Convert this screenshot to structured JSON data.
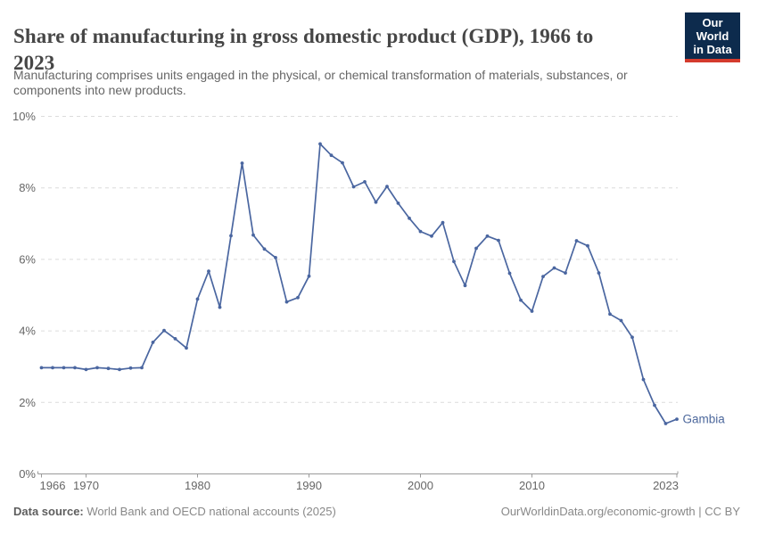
{
  "header": {
    "title_line1": "Share of manufacturing in gross domestic product (GDP), 1966 to",
    "title_line2": "2023",
    "subtitle_line1": "Manufacturing comprises units engaged in the physical, or chemical transformation of materials, substances, or",
    "subtitle_line2": "components into new products."
  },
  "logo": {
    "line1": "Our World",
    "line2": "in Data",
    "bg_color": "#0d2b4d",
    "stripe_color": "#d43b2d"
  },
  "footer": {
    "source_label": "Data source:",
    "source_text": " World Bank and OECD national accounts (2025)",
    "credit": "OurWorldinData.org/economic-growth | CC BY"
  },
  "chart_data": {
    "type": "line",
    "title": "Share of manufacturing in gross domestic product (GDP), 1966 to 2023",
    "unit": "%",
    "entity": "Gambia",
    "x": [
      1966,
      1967,
      1968,
      1969,
      1970,
      1971,
      1972,
      1973,
      1974,
      1975,
      1976,
      1977,
      1978,
      1979,
      1980,
      1981,
      1982,
      1983,
      1984,
      1985,
      1986,
      1987,
      1988,
      1989,
      1990,
      1991,
      1992,
      1993,
      1994,
      1995,
      1996,
      1997,
      1998,
      1999,
      2000,
      2001,
      2002,
      2003,
      2004,
      2005,
      2006,
      2007,
      2008,
      2009,
      2010,
      2011,
      2012,
      2013,
      2014,
      2015,
      2016,
      2017,
      2018,
      2019,
      2020,
      2021,
      2022,
      2023
    ],
    "series": [
      {
        "name": "Gambia",
        "values": [
          2.97,
          2.97,
          2.97,
          2.97,
          2.92,
          2.97,
          2.95,
          2.92,
          2.96,
          2.97,
          3.68,
          4.01,
          3.78,
          3.52,
          4.89,
          5.67,
          4.66,
          6.66,
          8.69,
          6.68,
          6.29,
          6.05,
          4.81,
          4.93,
          5.53,
          9.23,
          8.91,
          8.7,
          8.03,
          8.17,
          7.6,
          8.04,
          7.57,
          7.15,
          6.78,
          6.65,
          7.03,
          5.94,
          5.27,
          6.31,
          6.65,
          6.53,
          5.61,
          4.86,
          4.55,
          5.52,
          5.76,
          5.62,
          6.52,
          6.38,
          5.62,
          4.47,
          4.29,
          3.82,
          2.64,
          1.92,
          1.41,
          1.53
        ]
      }
    ],
    "xlabel": "",
    "ylabel": "",
    "ylim": [
      0,
      10
    ],
    "yticks": [
      0,
      2,
      4,
      6,
      8,
      10
    ],
    "ytick_suffix": "%",
    "xticks": [
      1966,
      1970,
      1980,
      1990,
      2000,
      2010,
      2023
    ],
    "grid": "horizontal-dashed",
    "legend_position": "end-of-line-label",
    "line_color": "#4a66a0",
    "entity_label_color": "#4d689c",
    "tick_label_color": "#666666",
    "axis_color": "#9a9a9a",
    "grid_color": "#dcdcdc"
  }
}
